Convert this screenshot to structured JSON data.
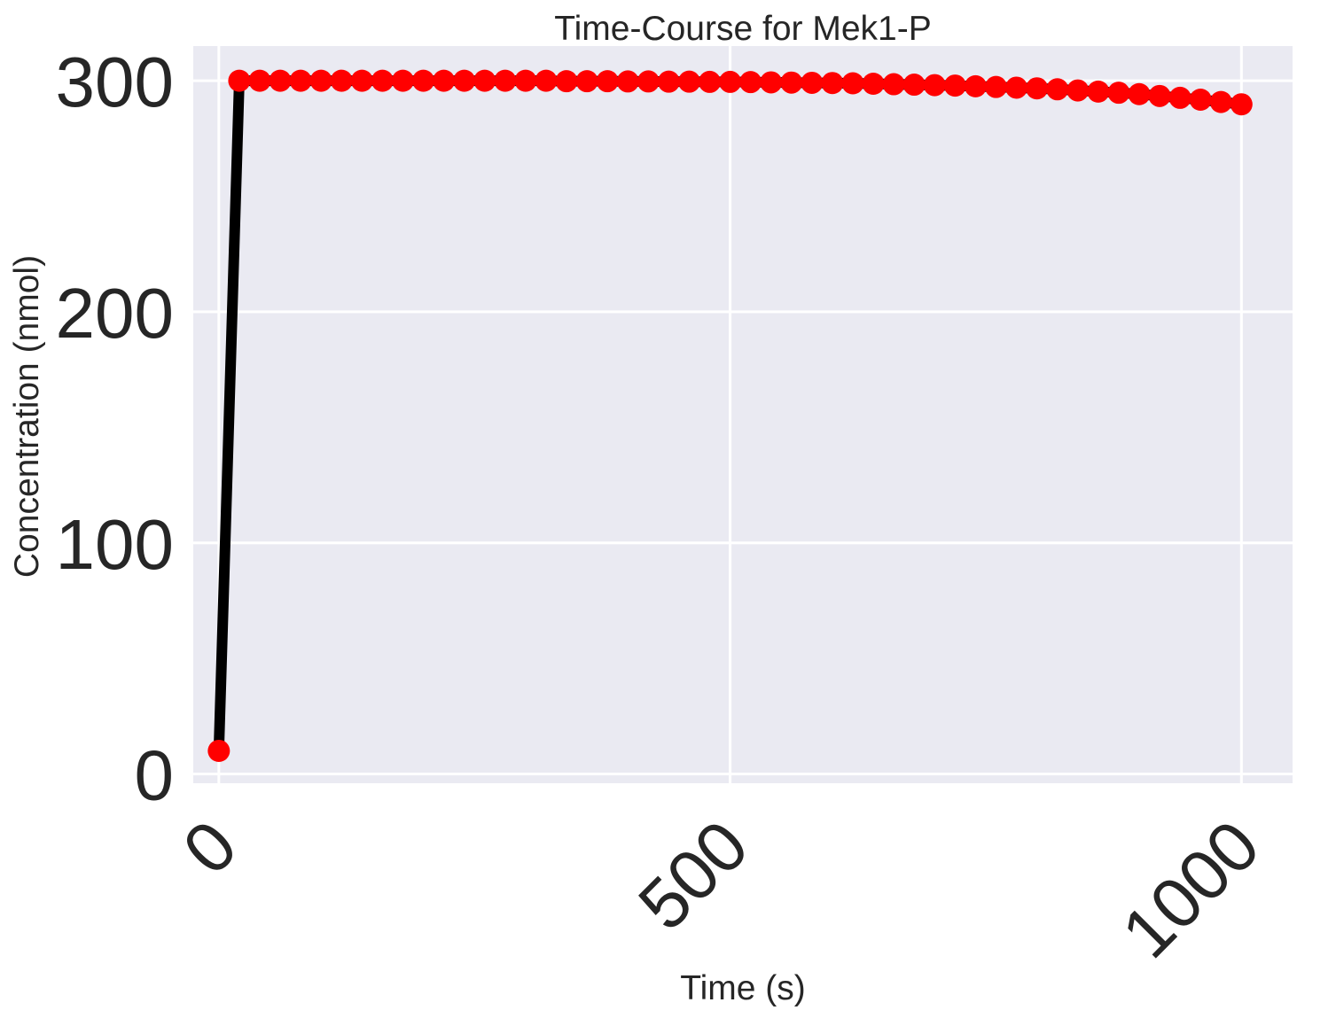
{
  "chart_data": {
    "type": "line",
    "title": "Time-Course for Mek1-P",
    "xlabel": "Time (s)",
    "ylabel": "Concentration (nmol)",
    "xlim": [
      -25,
      1050
    ],
    "ylim": [
      -4,
      315
    ],
    "xticks": [
      0,
      500,
      1000
    ],
    "yticks": [
      0,
      100,
      200,
      300
    ],
    "grid": true,
    "colors": {
      "background": "#eaeaf2",
      "grid": "#ffffff",
      "line": "#000000",
      "marker": "#ff0000"
    },
    "series": [
      {
        "x": [
          0,
          20,
          40,
          60,
          80,
          100,
          120,
          140,
          160,
          180,
          200,
          220,
          240,
          260,
          280,
          300,
          320,
          340,
          360,
          380,
          400,
          420,
          440,
          460,
          480,
          500,
          520,
          540,
          560,
          580,
          600,
          620,
          640,
          660,
          680,
          700,
          720,
          740,
          760,
          780,
          800,
          820,
          840,
          860,
          880,
          900,
          920,
          940,
          960,
          980,
          1000
        ],
        "y": [
          10,
          300,
          300,
          300,
          300,
          300,
          300,
          300,
          300,
          300,
          300,
          300,
          300,
          300,
          300,
          300,
          300,
          299.8,
          299.8,
          299.8,
          299.7,
          299.7,
          299.6,
          299.6,
          299.5,
          299.5,
          299.4,
          299.3,
          299.2,
          299.1,
          299,
          298.9,
          298.7,
          298.5,
          298.3,
          298.1,
          297.9,
          297.6,
          297.3,
          297,
          296.7,
          296.3,
          295.8,
          295.3,
          294.8,
          294.2,
          293.4,
          292.6,
          291.8,
          290.8,
          289.8
        ]
      }
    ]
  }
}
